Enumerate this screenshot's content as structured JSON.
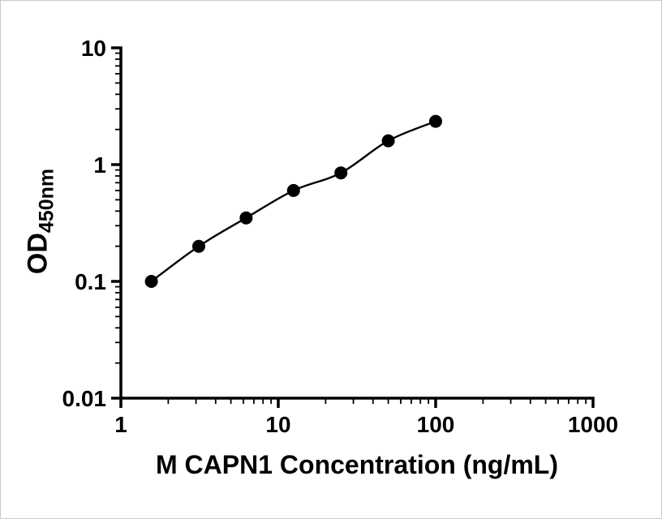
{
  "chart_data": {
    "type": "scatter",
    "title": "",
    "xlabel": "M CAPN1 Concentration (ng/mL)",
    "ylabel_main": "OD",
    "ylabel_sub": "450nm",
    "x": [
      1.5625,
      3.125,
      6.25,
      12.5,
      25,
      50,
      100
    ],
    "y": [
      0.1,
      0.2,
      0.35,
      0.6,
      0.85,
      1.6,
      2.35
    ],
    "xscale": "log",
    "yscale": "log",
    "xlim": [
      1,
      1000
    ],
    "ylim": [
      0.01,
      10
    ],
    "x_ticks": [
      1,
      10,
      100,
      1000
    ],
    "x_tick_labels": [
      "1",
      "10",
      "100",
      "1000"
    ],
    "y_ticks": [
      0.01,
      0.1,
      1,
      10
    ],
    "y_tick_labels": [
      "0.01",
      "0.1",
      "1",
      "10"
    ],
    "grid": false,
    "legend": "none",
    "axis_color": "#000000",
    "line_color": "#000000",
    "marker_color": "#000000"
  }
}
